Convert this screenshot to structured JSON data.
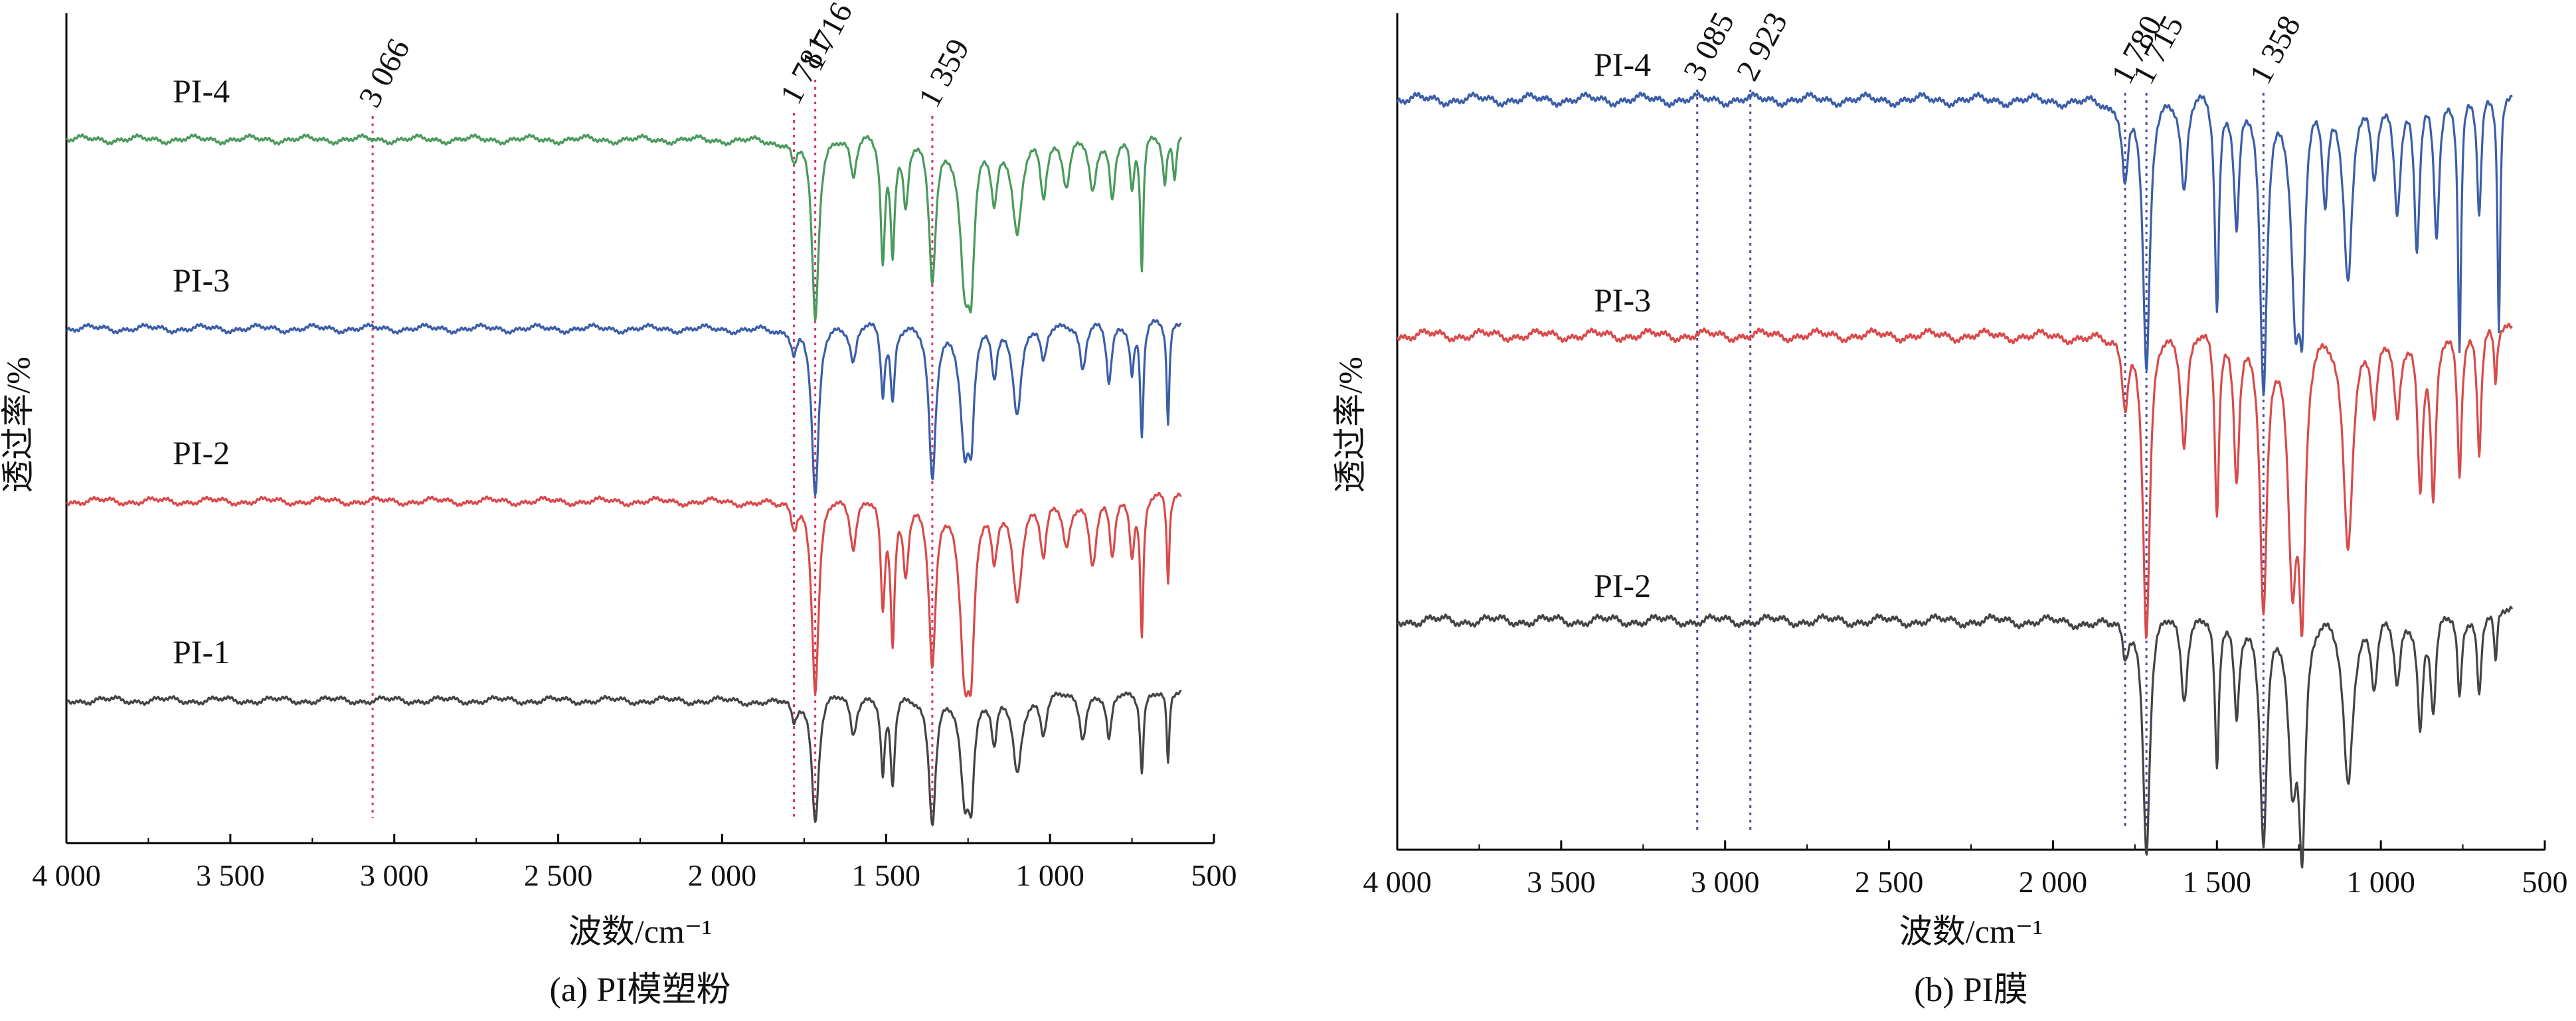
{
  "chart_data": [
    {
      "type": "line",
      "caption": "(a) PI模塑粉",
      "xlabel": "波数/cm⁻¹",
      "ylabel": "透过率/%",
      "xlim": [
        4000,
        500
      ],
      "x_reversed": true,
      "xticks": [
        4000,
        3500,
        3000,
        2500,
        2000,
        1500,
        1000,
        500
      ],
      "xtick_labels": [
        "4 000",
        "3 500",
        "3 000",
        "2 500",
        "2 000",
        "1 500",
        "1 000",
        "500"
      ],
      "grid": false,
      "y_units": "offset",
      "series": [
        {
          "name": "PI-4",
          "color": "#4a9a5c",
          "baseline": 3.0,
          "bands": [
            [
              1781,
              0.14,
              12
            ],
            [
              1716,
              0.95,
              13
            ],
            [
              1600,
              0.22,
              12
            ],
            [
              1510,
              0.62,
              8
            ],
            [
              1480,
              0.55,
              8
            ],
            [
              1440,
              0.35,
              10
            ],
            [
              1359,
              0.72,
              13
            ],
            [
              1260,
              0.7,
              18
            ],
            [
              1240,
              0.55,
              12
            ],
            [
              1170,
              0.3,
              12
            ],
            [
              1100,
              0.5,
              18
            ],
            [
              1020,
              0.3,
              12
            ],
            [
              950,
              0.25,
              14
            ],
            [
              870,
              0.3,
              14
            ],
            [
              810,
              0.32,
              10
            ],
            [
              750,
              0.28,
              8
            ],
            [
              720,
              0.68,
              6
            ],
            [
              650,
              0.25,
              8
            ],
            [
              620,
              0.22,
              6
            ]
          ]
        },
        {
          "name": "PI-3",
          "color": "#3b5ea8",
          "baseline": 2.0,
          "bands": [
            [
              1781,
              0.14,
              12
            ],
            [
              1716,
              0.9,
              13
            ],
            [
              1600,
              0.2,
              12
            ],
            [
              1510,
              0.35,
              8
            ],
            [
              1480,
              0.38,
              8
            ],
            [
              1359,
              0.8,
              13
            ],
            [
              1260,
              0.6,
              16
            ],
            [
              1240,
              0.45,
              10
            ],
            [
              1170,
              0.25,
              10
            ],
            [
              1100,
              0.45,
              16
            ],
            [
              1020,
              0.2,
              12
            ],
            [
              900,
              0.25,
              12
            ],
            [
              820,
              0.3,
              10
            ],
            [
              750,
              0.25,
              8
            ],
            [
              720,
              0.58,
              6
            ],
            [
              640,
              0.52,
              5
            ]
          ]
        },
        {
          "name": "PI-2",
          "color": "#d94a4a",
          "baseline": 1.0,
          "bands": [
            [
              1781,
              0.14,
              12
            ],
            [
              1716,
              1.0,
              13
            ],
            [
              1600,
              0.25,
              12
            ],
            [
              1510,
              0.55,
              8
            ],
            [
              1480,
              0.7,
              8
            ],
            [
              1440,
              0.35,
              10
            ],
            [
              1359,
              0.85,
              13
            ],
            [
              1260,
              0.8,
              18
            ],
            [
              1240,
              0.6,
              12
            ],
            [
              1170,
              0.3,
              12
            ],
            [
              1100,
              0.5,
              18
            ],
            [
              1020,
              0.3,
              12
            ],
            [
              950,
              0.25,
              14
            ],
            [
              870,
              0.35,
              14
            ],
            [
              810,
              0.3,
              10
            ],
            [
              750,
              0.28,
              8
            ],
            [
              720,
              0.7,
              6
            ],
            [
              640,
              0.45,
              5
            ]
          ]
        },
        {
          "name": "PI-1",
          "color": "#444444",
          "baseline": 0.0,
          "bands": [
            [
              1781,
              0.14,
              12
            ],
            [
              1716,
              0.65,
              13
            ],
            [
              1600,
              0.2,
              12
            ],
            [
              1510,
              0.4,
              8
            ],
            [
              1480,
              0.45,
              8
            ],
            [
              1359,
              0.65,
              13
            ],
            [
              1260,
              0.5,
              16
            ],
            [
              1240,
              0.4,
              10
            ],
            [
              1170,
              0.25,
              10
            ],
            [
              1100,
              0.4,
              16
            ],
            [
              1020,
              0.2,
              12
            ],
            [
              900,
              0.22,
              12
            ],
            [
              820,
              0.25,
              10
            ],
            [
              720,
              0.4,
              6
            ],
            [
              640,
              0.38,
              5
            ]
          ]
        }
      ],
      "annotations": [
        {
          "x": 3066,
          "label": "3 066",
          "color": "#d6336c"
        },
        {
          "x": 1781,
          "label": "1 781",
          "color": "#d6336c"
        },
        {
          "x": 1716,
          "label": "1 716",
          "color": "#d6336c"
        },
        {
          "x": 1359,
          "label": "1 359",
          "color": "#d6336c"
        }
      ]
    },
    {
      "type": "line",
      "caption": "(b) PI膜",
      "xlabel": "波数/cm⁻¹",
      "ylabel": "透过率/%",
      "xlim": [
        4000,
        500
      ],
      "x_reversed": true,
      "xticks": [
        4000,
        3500,
        3000,
        2500,
        2000,
        1500,
        1000,
        500
      ],
      "xtick_labels": [
        "4 000",
        "3 500",
        "3 000",
        "2 500",
        "2 000",
        "1 500",
        "1 000",
        "500"
      ],
      "grid": false,
      "y_units": "offset",
      "series": [
        {
          "name": "PI-4",
          "color": "#3b5ea8",
          "baseline": 2.0,
          "bands": [
            [
              1780,
              0.3,
              12
            ],
            [
              1715,
              1.0,
              13
            ],
            [
              1600,
              0.35,
              12
            ],
            [
              1500,
              0.75,
              8
            ],
            [
              1440,
              0.45,
              10
            ],
            [
              1358,
              1.05,
              13
            ],
            [
              1260,
              0.75,
              16
            ],
            [
              1240,
              0.6,
              10
            ],
            [
              1170,
              0.35,
              10
            ],
            [
              1100,
              0.65,
              16
            ],
            [
              1020,
              0.3,
              12
            ],
            [
              950,
              0.4,
              12
            ],
            [
              890,
              0.55,
              10
            ],
            [
              830,
              0.5,
              10
            ],
            [
              760,
              0.9,
              6
            ],
            [
              700,
              0.45,
              8
            ],
            [
              640,
              0.85,
              5
            ]
          ]
        },
        {
          "name": "PI-3",
          "color": "#d94a4a",
          "baseline": 1.0,
          "bands": [
            [
              1780,
              0.25,
              12
            ],
            [
              1715,
              1.1,
              13
            ],
            [
              1600,
              0.4,
              12
            ],
            [
              1500,
              0.65,
              8
            ],
            [
              1440,
              0.5,
              10
            ],
            [
              1358,
              1.0,
              13
            ],
            [
              1270,
              0.8,
              16
            ],
            [
              1240,
              0.9,
              12
            ],
            [
              1100,
              0.75,
              18
            ],
            [
              1020,
              0.3,
              12
            ],
            [
              950,
              0.3,
              12
            ],
            [
              880,
              0.55,
              10
            ],
            [
              840,
              0.6,
              10
            ],
            [
              760,
              0.5,
              8
            ],
            [
              700,
              0.45,
              8
            ],
            [
              650,
              0.2,
              6
            ]
          ]
        },
        {
          "name": "PI-2",
          "color": "#444444",
          "baseline": 0.0,
          "bands": [
            [
              1780,
              0.15,
              12
            ],
            [
              1715,
              0.85,
              13
            ],
            [
              1600,
              0.3,
              12
            ],
            [
              1500,
              0.55,
              8
            ],
            [
              1440,
              0.35,
              10
            ],
            [
              1358,
              0.8,
              13
            ],
            [
              1270,
              0.55,
              16
            ],
            [
              1240,
              0.75,
              12
            ],
            [
              1100,
              0.6,
              18
            ],
            [
              1020,
              0.25,
              12
            ],
            [
              950,
              0.25,
              12
            ],
            [
              880,
              0.4,
              10
            ],
            [
              840,
              0.35,
              10
            ],
            [
              760,
              0.3,
              8
            ],
            [
              700,
              0.3,
              8
            ],
            [
              650,
              0.2,
              6
            ]
          ]
        }
      ],
      "annotations": [
        {
          "x": 3085,
          "label": "3 085",
          "color": "#4a4a9a"
        },
        {
          "x": 2923,
          "label": "2 923",
          "color": "#4a4a9a"
        },
        {
          "x": 1780,
          "label": "1 780",
          "color": "#4a4a9a"
        },
        {
          "x": 1715,
          "label": "1 715",
          "color": "#4a4a9a"
        },
        {
          "x": 1358,
          "label": "1 358",
          "color": "#4a4a9a"
        }
      ]
    }
  ]
}
